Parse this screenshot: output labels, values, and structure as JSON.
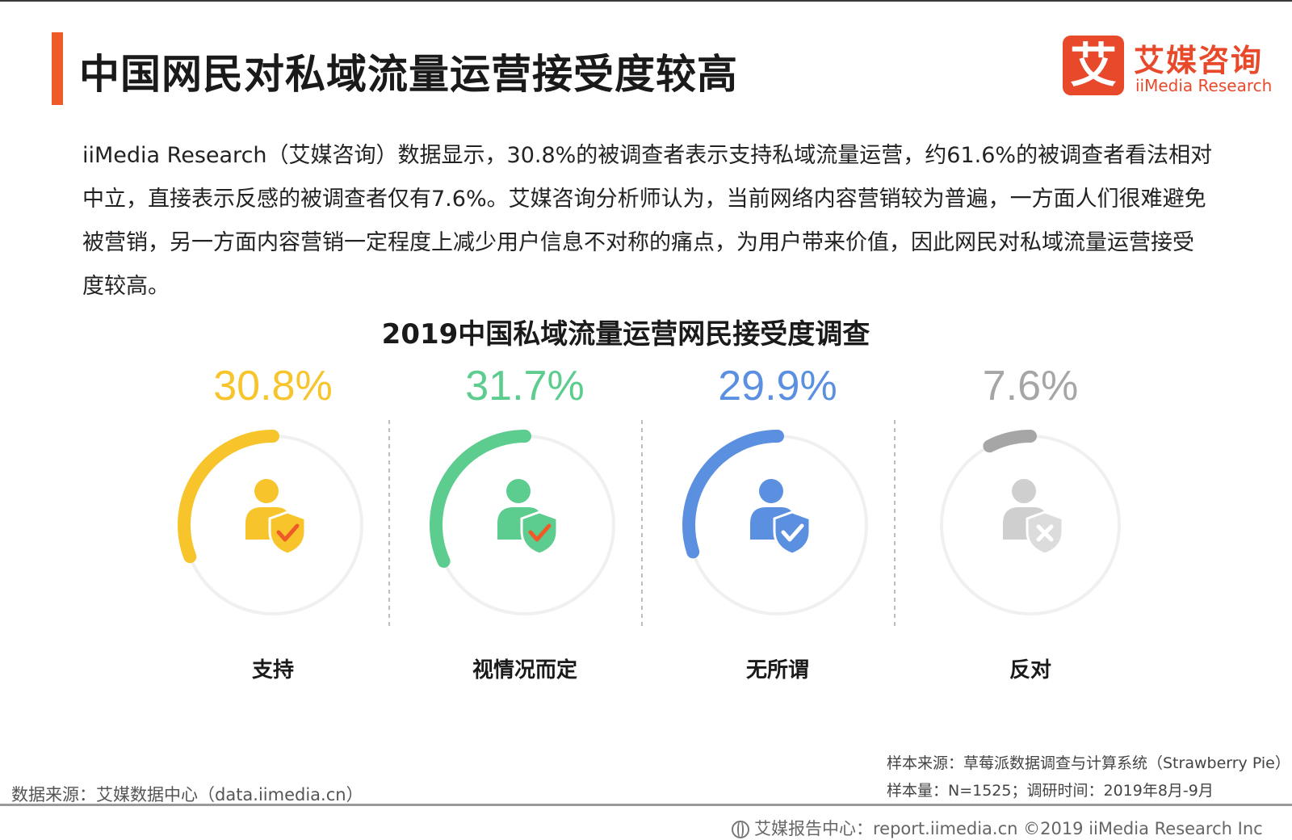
{
  "page": {
    "title": "中国网民对私域流量运营接受度较高",
    "intro": "iiMedia Research（艾媒咨询）数据显示，30.8%的被调查者表示支持私域流量运营，约61.6%的被调查者看法相对中立，直接表示反感的被调查者仅有7.6%。艾媒咨询分析师认为，当前网络内容营销较为普遍，一方面人们很难避免被营销，另一方面内容营销一定程度上减少用户信息不对称的痛点，为用户带来价值，因此网民对私域流量运营接受度较高。"
  },
  "logo": {
    "mark": "艾",
    "name_cn": "艾媒咨询",
    "name_en": "iiMedia Research"
  },
  "chart_data": {
    "type": "pie",
    "title": "2019中国私域流量运营网民接受度调查",
    "categories": [
      "支持",
      "视情况而定",
      "无所谓",
      "反对"
    ],
    "values": [
      30.8,
      31.7,
      29.9,
      7.6
    ],
    "value_labels": [
      "30.8%",
      "31.7%",
      "29.9%",
      "7.6%"
    ],
    "unit": "%",
    "colors": [
      "#f7c52b",
      "#5ccd8e",
      "#5b8fe0",
      "#a6a6a6"
    ],
    "icon_colors": [
      "#f7c52b",
      "#5ccd8e",
      "#5b8fe0",
      "#cfcfcf"
    ],
    "badge_colors": [
      "#f7c52b",
      "#5ccd8e",
      "#5b8fe0",
      "#dcdcdc"
    ],
    "mark_colors": [
      "#ef5a28",
      "#ef5a28",
      "#ffffff",
      "#ffffff"
    ],
    "icons": [
      "user-check-icon",
      "user-check-icon",
      "user-check-icon",
      "user-cross-icon"
    ],
    "track_color": "#f0f0f0"
  },
  "footer": {
    "data_source": "数据来源：艾媒数据中心（data.iimedia.cn）",
    "sample_source": "样本来源：草莓派数据调查与计算系统（Strawberry Pie）",
    "sample_size": "样本量：N=1525；调研时间：2019年8月-9月",
    "copyright": "艾媒报告中心：report.iimedia.cn ©2019  iiMedia Research  Inc"
  }
}
